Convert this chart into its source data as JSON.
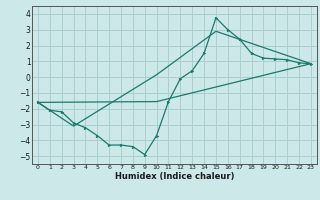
{
  "title": "",
  "xlabel": "Humidex (Indice chaleur)",
  "bg_color": "#cce8e8",
  "line_color": "#1a7a6e",
  "grid_color": "#aacfcf",
  "xlim": [
    -0.5,
    23.5
  ],
  "ylim": [
    -5.5,
    4.5
  ],
  "xticks": [
    0,
    1,
    2,
    3,
    4,
    5,
    6,
    7,
    8,
    9,
    10,
    11,
    12,
    13,
    14,
    15,
    16,
    17,
    18,
    19,
    20,
    21,
    22,
    23
  ],
  "yticks": [
    -5,
    -4,
    -3,
    -2,
    -1,
    0,
    1,
    2,
    3,
    4
  ],
  "line1_x": [
    0,
    1,
    2,
    3,
    4,
    5,
    6,
    7,
    8,
    9,
    10,
    11,
    12,
    13,
    14,
    15,
    16,
    17,
    18,
    19,
    20,
    21,
    22,
    23
  ],
  "line1_y": [
    -1.6,
    -2.1,
    -2.2,
    -2.9,
    -3.2,
    -3.7,
    -4.3,
    -4.3,
    -4.4,
    -4.9,
    -3.7,
    -1.55,
    -0.1,
    0.4,
    1.5,
    3.75,
    3.0,
    2.4,
    1.5,
    1.2,
    1.15,
    1.1,
    0.9,
    0.85
  ],
  "line2_x": [
    0,
    3,
    10,
    15,
    23
  ],
  "line2_y": [
    -1.6,
    -3.1,
    0.15,
    2.9,
    0.85
  ],
  "line3_x": [
    0,
    10,
    23
  ],
  "line3_y": [
    -1.6,
    -1.55,
    0.85
  ]
}
